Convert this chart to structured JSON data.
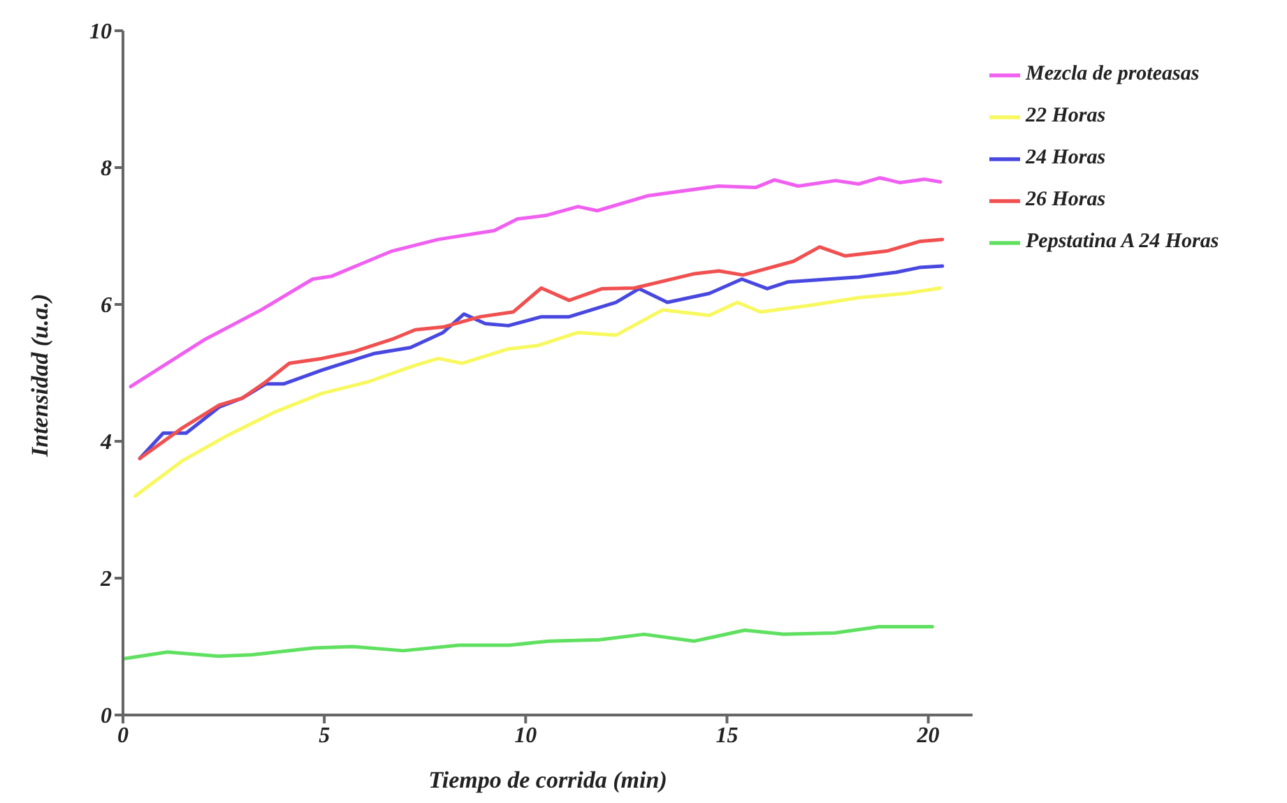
{
  "chart_data": {
    "type": "line",
    "xlabel": "Tiempo de corrida (min)",
    "ylabel": "Intensidad (u.a.)",
    "xlim": [
      0,
      21.1
    ],
    "xticks": [
      0,
      5,
      10,
      15,
      20
    ],
    "ylim": [
      0,
      10
    ],
    "yticks": [
      0,
      2,
      4,
      6,
      8,
      10
    ],
    "grid": false,
    "legend": "right",
    "marker": "none",
    "line_style": "solid",
    "series": [
      {
        "name": "Mezcla de proteasas",
        "color": "#f060f0",
        "x": [
          0.19,
          2.04,
          3.43,
          4.71,
          5.17,
          6.68,
          7.83,
          9.22,
          9.8,
          10.5,
          11.3,
          11.78,
          13.05,
          14.79,
          15.72,
          16.18,
          16.77,
          17.7,
          18.27,
          18.8,
          19.3,
          19.9,
          20.3
        ],
        "values": [
          4.8,
          5.49,
          5.92,
          6.37,
          6.41,
          6.78,
          6.95,
          7.08,
          7.25,
          7.3,
          7.43,
          7.37,
          7.59,
          7.73,
          7.71,
          7.82,
          7.73,
          7.81,
          7.76,
          7.85,
          7.78,
          7.83,
          7.79
        ]
      },
      {
        "name": "22 Horas",
        "color": "#f8f860",
        "x": [
          0.3,
          1.46,
          2.61,
          3.78,
          4.94,
          6.09,
          7.26,
          7.83,
          8.42,
          9.57,
          10.3,
          11.3,
          12.24,
          13.4,
          14.56,
          15.26,
          15.83,
          17.1,
          18.27,
          19.43,
          20.3
        ],
        "values": [
          3.2,
          3.71,
          4.09,
          4.43,
          4.7,
          4.87,
          5.11,
          5.21,
          5.14,
          5.35,
          5.4,
          5.59,
          5.55,
          5.92,
          5.84,
          6.03,
          5.89,
          5.99,
          6.1,
          6.16,
          6.24
        ]
      },
      {
        "name": "24 Horas",
        "color": "#4848e0",
        "x": [
          0.42,
          1.0,
          1.57,
          2.39,
          2.96,
          3.55,
          4.0,
          4.94,
          6.22,
          7.14,
          7.95,
          8.47,
          9.0,
          9.57,
          10.39,
          11.08,
          12.24,
          12.82,
          13.52,
          14.56,
          15.37,
          16.0,
          16.52,
          18.27,
          19.2,
          19.78,
          20.35
        ],
        "values": [
          3.75,
          4.12,
          4.12,
          4.5,
          4.63,
          4.84,
          4.84,
          5.04,
          5.28,
          5.37,
          5.59,
          5.86,
          5.72,
          5.69,
          5.82,
          5.82,
          6.03,
          6.23,
          6.03,
          6.16,
          6.37,
          6.23,
          6.33,
          6.4,
          6.47,
          6.54,
          6.56
        ]
      },
      {
        "name": "26 Horas",
        "color": "#f05050",
        "x": [
          0.42,
          1.46,
          2.39,
          2.96,
          3.55,
          4.13,
          4.94,
          5.74,
          6.68,
          7.26,
          7.95,
          8.87,
          9.69,
          10.39,
          11.08,
          11.9,
          12.7,
          14.2,
          14.8,
          15.4,
          16.65,
          17.3,
          17.93,
          18.97,
          19.78,
          20.35
        ],
        "values": [
          3.75,
          4.19,
          4.53,
          4.63,
          4.87,
          5.14,
          5.21,
          5.31,
          5.49,
          5.63,
          5.67,
          5.82,
          5.89,
          6.24,
          6.06,
          6.23,
          6.24,
          6.45,
          6.49,
          6.43,
          6.63,
          6.84,
          6.71,
          6.78,
          6.92,
          6.95
        ]
      },
      {
        "name": "Pepstatina A 24 Horas",
        "color": "#60e060",
        "x": [
          0,
          1.11,
          2.37,
          3.2,
          4.73,
          5.7,
          6.96,
          8.35,
          9.6,
          10.57,
          11.83,
          12.94,
          14.19,
          15.44,
          16.4,
          17.67,
          18.78,
          20.1
        ],
        "values": [
          0.82,
          0.92,
          0.86,
          0.88,
          0.98,
          1.0,
          0.94,
          1.02,
          1.02,
          1.08,
          1.1,
          1.18,
          1.08,
          1.24,
          1.18,
          1.2,
          1.29,
          1.29
        ]
      }
    ]
  }
}
